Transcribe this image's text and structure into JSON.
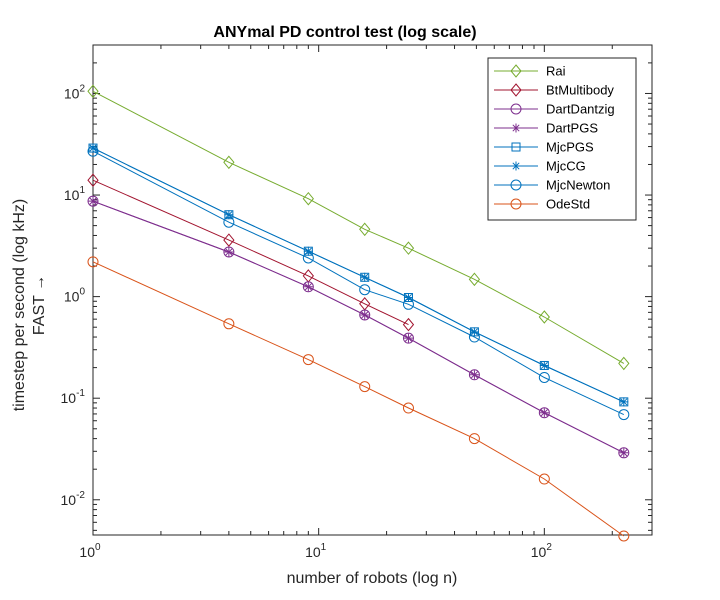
{
  "chart_data": {
    "type": "line",
    "title": "ANYmal PD control test (log scale)",
    "xlabel": "number of robots (log n)",
    "ylabel_line1": "timestep per second (log kHz)",
    "ylabel_line2": "FAST →",
    "x_scale": "log",
    "y_scale": "log",
    "xlim": [
      1,
      300
    ],
    "ylim": [
      0.0045,
      300
    ],
    "x_ticks": [
      {
        "value": 1,
        "base": "10",
        "exp": "0"
      },
      {
        "value": 10,
        "base": "10",
        "exp": "1"
      },
      {
        "value": 100,
        "base": "10",
        "exp": "2"
      }
    ],
    "y_ticks": [
      {
        "value": 0.01,
        "base": "10",
        "exp": "-2"
      },
      {
        "value": 0.1,
        "base": "10",
        "exp": "-1"
      },
      {
        "value": 1,
        "base": "10",
        "exp": "0"
      },
      {
        "value": 10,
        "base": "10",
        "exp": "1"
      },
      {
        "value": 100,
        "base": "10",
        "exp": "2"
      }
    ],
    "grid": false,
    "legend_position": "top-right",
    "series": [
      {
        "name": "Rai",
        "color": "#77AC30",
        "marker": "diamond",
        "x": [
          1,
          4,
          9,
          16,
          25,
          49,
          100,
          225
        ],
        "y": [
          105,
          21,
          9.2,
          4.6,
          3.0,
          1.48,
          0.63,
          0.22
        ]
      },
      {
        "name": "BtMultibody",
        "color": "#A2142F",
        "marker": "diamond",
        "x": [
          1,
          4,
          9,
          16,
          25
        ],
        "y": [
          14,
          3.6,
          1.6,
          0.85,
          0.53
        ]
      },
      {
        "name": "DartDantzig",
        "color": "#7E2F8E",
        "marker": "circle",
        "x": [
          1,
          4,
          9,
          16,
          25,
          49,
          100,
          225
        ],
        "y": [
          8.7,
          2.75,
          1.25,
          0.66,
          0.39,
          0.17,
          0.072,
          0.029
        ]
      },
      {
        "name": "DartPGS",
        "color": "#7E2F8E",
        "marker": "asterisk",
        "x": [
          1,
          4,
          9,
          16,
          25,
          49,
          100,
          225
        ],
        "y": [
          8.7,
          2.75,
          1.25,
          0.66,
          0.39,
          0.17,
          0.072,
          0.029
        ]
      },
      {
        "name": "MjcPGS",
        "color": "#0072BD",
        "marker": "square",
        "x": [
          1,
          4,
          9,
          16,
          25,
          49,
          100,
          225
        ],
        "y": [
          29,
          6.4,
          2.8,
          1.55,
          0.98,
          0.45,
          0.21,
          0.092
        ]
      },
      {
        "name": "MjcCG",
        "color": "#0072BD",
        "marker": "asterisk",
        "x": [
          1,
          4,
          9,
          16,
          25,
          49,
          100,
          225
        ],
        "y": [
          29,
          6.4,
          2.8,
          1.55,
          0.98,
          0.45,
          0.21,
          0.092
        ]
      },
      {
        "name": "MjcNewton",
        "color": "#0072BD",
        "marker": "circle",
        "x": [
          1,
          4,
          9,
          16,
          25,
          49,
          100,
          225
        ],
        "y": [
          27,
          5.4,
          2.4,
          1.17,
          0.84,
          0.4,
          0.16,
          0.069
        ]
      },
      {
        "name": "OdeStd",
        "color": "#D95319",
        "marker": "circle",
        "x": [
          1,
          4,
          9,
          16,
          25,
          49,
          100,
          225
        ],
        "y": [
          2.2,
          0.54,
          0.24,
          0.13,
          0.08,
          0.04,
          0.016,
          0.0044
        ]
      }
    ]
  }
}
